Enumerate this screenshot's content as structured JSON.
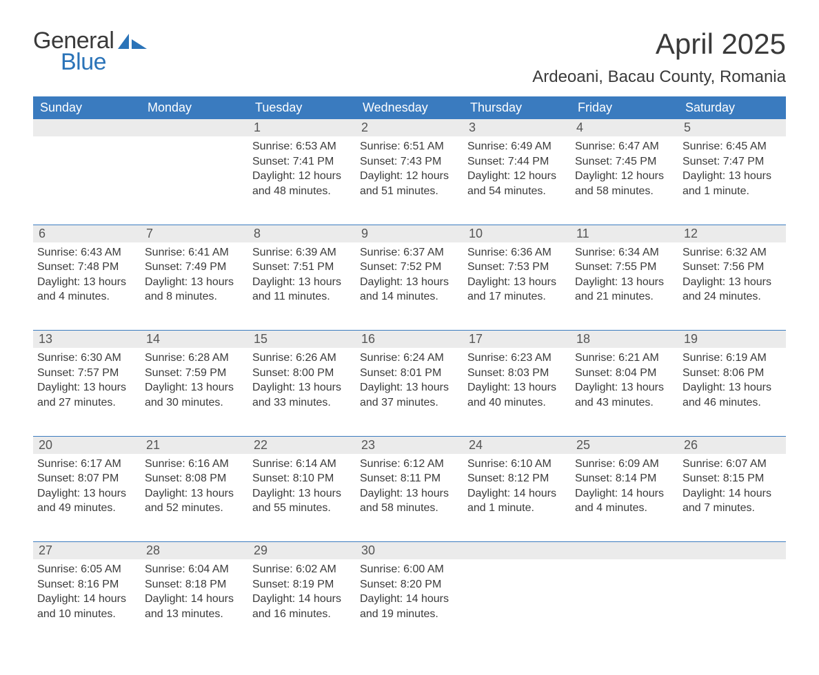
{
  "logo": {
    "text1": "General",
    "text2": "Blue",
    "accent_color": "#2a73b8"
  },
  "title": "April 2025",
  "location": "Ardeoani, Bacau County, Romania",
  "colors": {
    "header_bg": "#3a7bbf",
    "header_text": "#ffffff",
    "daynum_bg": "#ebebeb",
    "text": "#3a3a3a",
    "rule": "#3a7bbf",
    "page_bg": "#ffffff"
  },
  "weekdays": [
    "Sunday",
    "Monday",
    "Tuesday",
    "Wednesday",
    "Thursday",
    "Friday",
    "Saturday"
  ],
  "weeks": [
    [
      null,
      null,
      {
        "num": "1",
        "sunrise": "Sunrise: 6:53 AM",
        "sunset": "Sunset: 7:41 PM",
        "daylight": "Daylight: 12 hours and 48 minutes."
      },
      {
        "num": "2",
        "sunrise": "Sunrise: 6:51 AM",
        "sunset": "Sunset: 7:43 PM",
        "daylight": "Daylight: 12 hours and 51 minutes."
      },
      {
        "num": "3",
        "sunrise": "Sunrise: 6:49 AM",
        "sunset": "Sunset: 7:44 PM",
        "daylight": "Daylight: 12 hours and 54 minutes."
      },
      {
        "num": "4",
        "sunrise": "Sunrise: 6:47 AM",
        "sunset": "Sunset: 7:45 PM",
        "daylight": "Daylight: 12 hours and 58 minutes."
      },
      {
        "num": "5",
        "sunrise": "Sunrise: 6:45 AM",
        "sunset": "Sunset: 7:47 PM",
        "daylight": "Daylight: 13 hours and 1 minute."
      }
    ],
    [
      {
        "num": "6",
        "sunrise": "Sunrise: 6:43 AM",
        "sunset": "Sunset: 7:48 PM",
        "daylight": "Daylight: 13 hours and 4 minutes."
      },
      {
        "num": "7",
        "sunrise": "Sunrise: 6:41 AM",
        "sunset": "Sunset: 7:49 PM",
        "daylight": "Daylight: 13 hours and 8 minutes."
      },
      {
        "num": "8",
        "sunrise": "Sunrise: 6:39 AM",
        "sunset": "Sunset: 7:51 PM",
        "daylight": "Daylight: 13 hours and 11 minutes."
      },
      {
        "num": "9",
        "sunrise": "Sunrise: 6:37 AM",
        "sunset": "Sunset: 7:52 PM",
        "daylight": "Daylight: 13 hours and 14 minutes."
      },
      {
        "num": "10",
        "sunrise": "Sunrise: 6:36 AM",
        "sunset": "Sunset: 7:53 PM",
        "daylight": "Daylight: 13 hours and 17 minutes."
      },
      {
        "num": "11",
        "sunrise": "Sunrise: 6:34 AM",
        "sunset": "Sunset: 7:55 PM",
        "daylight": "Daylight: 13 hours and 21 minutes."
      },
      {
        "num": "12",
        "sunrise": "Sunrise: 6:32 AM",
        "sunset": "Sunset: 7:56 PM",
        "daylight": "Daylight: 13 hours and 24 minutes."
      }
    ],
    [
      {
        "num": "13",
        "sunrise": "Sunrise: 6:30 AM",
        "sunset": "Sunset: 7:57 PM",
        "daylight": "Daylight: 13 hours and 27 minutes."
      },
      {
        "num": "14",
        "sunrise": "Sunrise: 6:28 AM",
        "sunset": "Sunset: 7:59 PM",
        "daylight": "Daylight: 13 hours and 30 minutes."
      },
      {
        "num": "15",
        "sunrise": "Sunrise: 6:26 AM",
        "sunset": "Sunset: 8:00 PM",
        "daylight": "Daylight: 13 hours and 33 minutes."
      },
      {
        "num": "16",
        "sunrise": "Sunrise: 6:24 AM",
        "sunset": "Sunset: 8:01 PM",
        "daylight": "Daylight: 13 hours and 37 minutes."
      },
      {
        "num": "17",
        "sunrise": "Sunrise: 6:23 AM",
        "sunset": "Sunset: 8:03 PM",
        "daylight": "Daylight: 13 hours and 40 minutes."
      },
      {
        "num": "18",
        "sunrise": "Sunrise: 6:21 AM",
        "sunset": "Sunset: 8:04 PM",
        "daylight": "Daylight: 13 hours and 43 minutes."
      },
      {
        "num": "19",
        "sunrise": "Sunrise: 6:19 AM",
        "sunset": "Sunset: 8:06 PM",
        "daylight": "Daylight: 13 hours and 46 minutes."
      }
    ],
    [
      {
        "num": "20",
        "sunrise": "Sunrise: 6:17 AM",
        "sunset": "Sunset: 8:07 PM",
        "daylight": "Daylight: 13 hours and 49 minutes."
      },
      {
        "num": "21",
        "sunrise": "Sunrise: 6:16 AM",
        "sunset": "Sunset: 8:08 PM",
        "daylight": "Daylight: 13 hours and 52 minutes."
      },
      {
        "num": "22",
        "sunrise": "Sunrise: 6:14 AM",
        "sunset": "Sunset: 8:10 PM",
        "daylight": "Daylight: 13 hours and 55 minutes."
      },
      {
        "num": "23",
        "sunrise": "Sunrise: 6:12 AM",
        "sunset": "Sunset: 8:11 PM",
        "daylight": "Daylight: 13 hours and 58 minutes."
      },
      {
        "num": "24",
        "sunrise": "Sunrise: 6:10 AM",
        "sunset": "Sunset: 8:12 PM",
        "daylight": "Daylight: 14 hours and 1 minute."
      },
      {
        "num": "25",
        "sunrise": "Sunrise: 6:09 AM",
        "sunset": "Sunset: 8:14 PM",
        "daylight": "Daylight: 14 hours and 4 minutes."
      },
      {
        "num": "26",
        "sunrise": "Sunrise: 6:07 AM",
        "sunset": "Sunset: 8:15 PM",
        "daylight": "Daylight: 14 hours and 7 minutes."
      }
    ],
    [
      {
        "num": "27",
        "sunrise": "Sunrise: 6:05 AM",
        "sunset": "Sunset: 8:16 PM",
        "daylight": "Daylight: 14 hours and 10 minutes."
      },
      {
        "num": "28",
        "sunrise": "Sunrise: 6:04 AM",
        "sunset": "Sunset: 8:18 PM",
        "daylight": "Daylight: 14 hours and 13 minutes."
      },
      {
        "num": "29",
        "sunrise": "Sunrise: 6:02 AM",
        "sunset": "Sunset: 8:19 PM",
        "daylight": "Daylight: 14 hours and 16 minutes."
      },
      {
        "num": "30",
        "sunrise": "Sunrise: 6:00 AM",
        "sunset": "Sunset: 8:20 PM",
        "daylight": "Daylight: 14 hours and 19 minutes."
      },
      null,
      null,
      null
    ]
  ]
}
